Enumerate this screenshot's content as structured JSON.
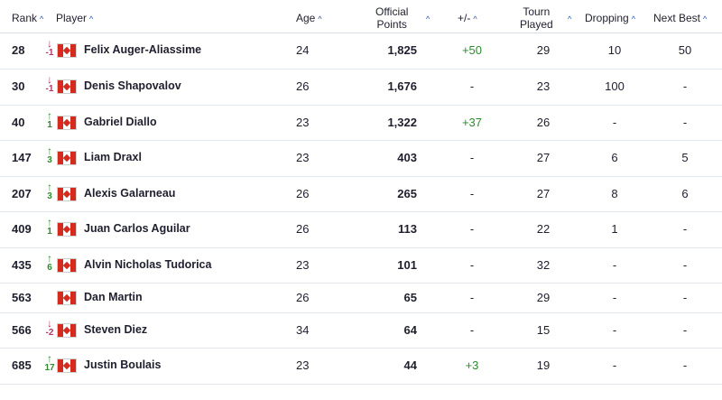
{
  "header": {
    "rank": "Rank",
    "player": "Player",
    "age": "Age",
    "points_line1": "Official",
    "points_line2": "Points",
    "plus_minus": "+/-",
    "tourn_line1": "Tourn",
    "tourn_line2": "Played",
    "dropping": "Dropping",
    "next_best": "Next Best",
    "sort_icon": "^"
  },
  "accent_color": "#1f4fb8",
  "up_color": "#2e8b2e",
  "down_color": "#b5366a",
  "rows": [
    {
      "rank": "28",
      "move": "-1",
      "dir": "down",
      "name": "Felix Auger-Aliassime",
      "age": "24",
      "points": "1,825",
      "plus_minus": "+50",
      "tourn": "29",
      "dropping": "10",
      "next_best": "50"
    },
    {
      "rank": "30",
      "move": "-1",
      "dir": "down",
      "name": "Denis Shapovalov",
      "age": "26",
      "points": "1,676",
      "plus_minus": "-",
      "tourn": "23",
      "dropping": "100",
      "next_best": "-"
    },
    {
      "rank": "40",
      "move": "1",
      "dir": "up",
      "name": "Gabriel Diallo",
      "age": "23",
      "points": "1,322",
      "plus_minus": "+37",
      "tourn": "26",
      "dropping": "-",
      "next_best": "-"
    },
    {
      "rank": "147",
      "move": "3",
      "dir": "up",
      "name": "Liam Draxl",
      "age": "23",
      "points": "403",
      "plus_minus": "-",
      "tourn": "27",
      "dropping": "6",
      "next_best": "5"
    },
    {
      "rank": "207",
      "move": "3",
      "dir": "up",
      "name": "Alexis Galarneau",
      "age": "26",
      "points": "265",
      "plus_minus": "-",
      "tourn": "27",
      "dropping": "8",
      "next_best": "6"
    },
    {
      "rank": "409",
      "move": "1",
      "dir": "up",
      "name": "Juan Carlos Aguilar",
      "age": "26",
      "points": "113",
      "plus_minus": "-",
      "tourn": "22",
      "dropping": "1",
      "next_best": "-"
    },
    {
      "rank": "435",
      "move": "6",
      "dir": "up",
      "name": "Alvin Nicholas Tudorica",
      "age": "23",
      "points": "101",
      "plus_minus": "-",
      "tourn": "32",
      "dropping": "-",
      "next_best": "-"
    },
    {
      "rank": "563",
      "move": "",
      "dir": "none",
      "name": "Dan Martin",
      "age": "26",
      "points": "65",
      "plus_minus": "-",
      "tourn": "29",
      "dropping": "-",
      "next_best": "-"
    },
    {
      "rank": "566",
      "move": "-2",
      "dir": "down",
      "name": "Steven Diez",
      "age": "34",
      "points": "64",
      "plus_minus": "-",
      "tourn": "15",
      "dropping": "-",
      "next_best": "-"
    },
    {
      "rank": "685",
      "move": "17",
      "dir": "up",
      "name": "Justin Boulais",
      "age": "23",
      "points": "44",
      "plus_minus": "+3",
      "tourn": "19",
      "dropping": "-",
      "next_best": "-"
    }
  ]
}
